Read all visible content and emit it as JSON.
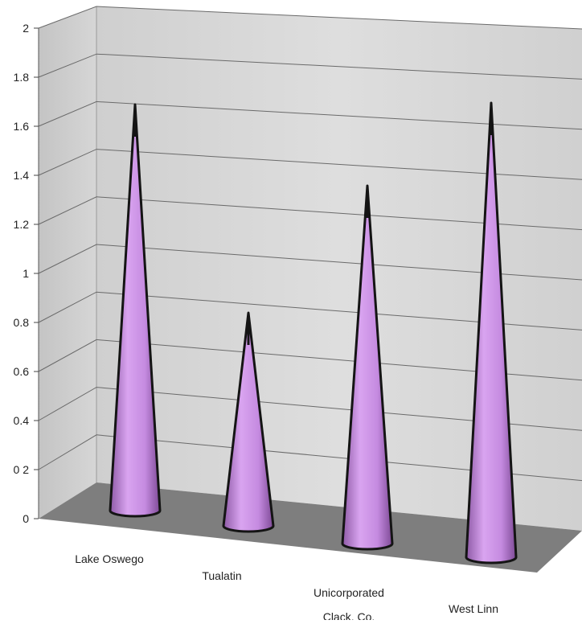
{
  "chart_data": {
    "type": "bar",
    "style": "3d-cone",
    "title": "",
    "xlabel": "",
    "ylabel": "",
    "categories": [
      "Lake Oswego",
      "Tualatin",
      "Unicorporated Clack. Co.",
      "West Linn"
    ],
    "category_lines": [
      [
        "Lake Oswego"
      ],
      [
        "Tualatin"
      ],
      [
        "Unicorporated",
        "Clack. Co."
      ],
      [
        "West Linn"
      ]
    ],
    "values": [
      1.6,
      0.8,
      1.4,
      1.8
    ],
    "ylim": [
      0,
      2
    ],
    "y_ticks": [
      "0",
      "0 2",
      "0.4",
      "0.6",
      "0.8",
      "1",
      "1.2",
      "1.4",
      "1.6",
      "1.8",
      "2"
    ],
    "grid": true,
    "legend": "none",
    "colors": {
      "cone_fill": "#c58be0",
      "cone_edge": "#141414",
      "wall": "#d3d3d3",
      "floor": "#7e7e7e",
      "gridline": "#6a6a6a"
    }
  }
}
